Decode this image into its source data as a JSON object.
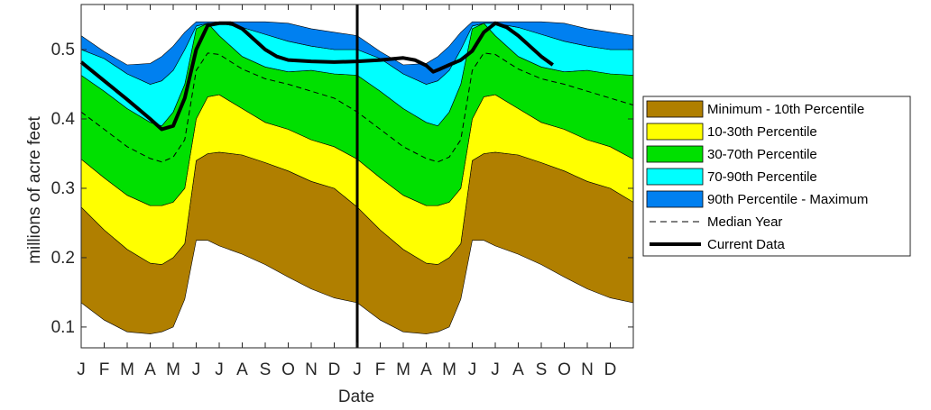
{
  "chart_data": {
    "type": "area",
    "xlabel": "Date",
    "ylabel": "millions of acre feet",
    "ylim": [
      0.07,
      0.565
    ],
    "yticks": [
      0.1,
      0.2,
      0.3,
      0.4,
      0.5
    ],
    "ytick_labels": [
      "0.1",
      "0.2",
      "0.3",
      "0.4",
      "0.5"
    ],
    "xlim": [
      0,
      24
    ],
    "xtick_labels": [
      "J",
      "F",
      "M",
      "A",
      "M",
      "J",
      "J",
      "A",
      "S",
      "O",
      "N",
      "D",
      "J",
      "F",
      "M",
      "A",
      "M",
      "J",
      "J",
      "A",
      "S",
      "O",
      "N",
      "D"
    ],
    "vertical_line_x": 12,
    "grid": false,
    "legend_position": "right",
    "x": [
      0,
      1,
      2,
      3,
      3.5,
      4,
      4.5,
      5,
      5.5,
      6,
      7,
      8,
      9,
      10,
      11,
      12,
      13,
      14,
      15,
      15.5,
      16,
      16.5,
      17,
      17.5,
      18,
      19,
      20,
      21,
      22,
      23,
      24
    ],
    "boundaries": [
      [
        0.135,
        0.11,
        0.093,
        0.09,
        0.093,
        0.1,
        0.14,
        0.225,
        0.225,
        0.217,
        0.205,
        0.19,
        0.172,
        0.155,
        0.142,
        0.135,
        0.11,
        0.093,
        0.09,
        0.093,
        0.1,
        0.14,
        0.225,
        0.225,
        0.217,
        0.205,
        0.19,
        0.172,
        0.155,
        0.142,
        0.135
      ],
      [
        0.273,
        0.24,
        0.212,
        0.192,
        0.19,
        0.2,
        0.22,
        0.34,
        0.35,
        0.352,
        0.348,
        0.337,
        0.325,
        0.31,
        0.3,
        0.273,
        0.24,
        0.212,
        0.192,
        0.19,
        0.2,
        0.22,
        0.34,
        0.35,
        0.352,
        0.348,
        0.337,
        0.325,
        0.31,
        0.3,
        0.28
      ],
      [
        0.342,
        0.315,
        0.29,
        0.275,
        0.275,
        0.28,
        0.3,
        0.4,
        0.432,
        0.435,
        0.415,
        0.395,
        0.385,
        0.37,
        0.36,
        0.342,
        0.315,
        0.29,
        0.275,
        0.275,
        0.28,
        0.3,
        0.4,
        0.432,
        0.435,
        0.415,
        0.395,
        0.385,
        0.37,
        0.36,
        0.342
      ],
      [
        0.463,
        0.44,
        0.415,
        0.395,
        0.39,
        0.41,
        0.45,
        0.53,
        0.538,
        0.52,
        0.49,
        0.475,
        0.468,
        0.47,
        0.465,
        0.463,
        0.44,
        0.415,
        0.395,
        0.39,
        0.41,
        0.45,
        0.53,
        0.538,
        0.52,
        0.49,
        0.475,
        0.468,
        0.47,
        0.465,
        0.463
      ],
      [
        0.5,
        0.487,
        0.465,
        0.45,
        0.455,
        0.47,
        0.5,
        0.534,
        0.538,
        0.538,
        0.532,
        0.522,
        0.512,
        0.505,
        0.5,
        0.5,
        0.487,
        0.465,
        0.45,
        0.455,
        0.47,
        0.5,
        0.534,
        0.538,
        0.538,
        0.532,
        0.522,
        0.512,
        0.505,
        0.5,
        0.5
      ],
      [
        0.52,
        0.497,
        0.478,
        0.48,
        0.49,
        0.505,
        0.525,
        0.54,
        0.54,
        0.54,
        0.54,
        0.54,
        0.538,
        0.53,
        0.525,
        0.52,
        0.497,
        0.478,
        0.48,
        0.49,
        0.505,
        0.525,
        0.54,
        0.54,
        0.54,
        0.54,
        0.54,
        0.538,
        0.53,
        0.525,
        0.52
      ]
    ],
    "series": [
      {
        "name": "Minimum - 10th Percentile",
        "color": "#b07f00"
      },
      {
        "name": "10-30th Percentile",
        "color": "#ffff00"
      },
      {
        "name": "30-70th Percentile",
        "color": "#00e000"
      },
      {
        "name": "70-90th Percentile",
        "color": "#00ffff"
      },
      {
        "name": "90th Percentile - Maximum",
        "color": "#0080f0"
      }
    ],
    "median": {
      "name": "Median Year",
      "values": [
        0.41,
        0.385,
        0.36,
        0.343,
        0.338,
        0.345,
        0.37,
        0.47,
        0.495,
        0.493,
        0.472,
        0.458,
        0.45,
        0.44,
        0.43,
        0.41,
        0.385,
        0.36,
        0.343,
        0.338,
        0.345,
        0.37,
        0.47,
        0.495,
        0.493,
        0.472,
        0.458,
        0.45,
        0.44,
        0.43,
        0.42
      ]
    },
    "current": {
      "name": "Current Data",
      "x": [
        0,
        1,
        2,
        3,
        3.5,
        4,
        4.5,
        5,
        5.5,
        6,
        6.5,
        7,
        7.5,
        8,
        8.5,
        9,
        10,
        11,
        12,
        13,
        14,
        14.5,
        15,
        15.3,
        15.6,
        16,
        16.5,
        17,
        17.5,
        18,
        18.5,
        19,
        19.5,
        20,
        20.5
      ],
      "values": [
        0.482,
        0.455,
        0.428,
        0.4,
        0.385,
        0.39,
        0.43,
        0.5,
        0.535,
        0.538,
        0.538,
        0.53,
        0.515,
        0.5,
        0.49,
        0.485,
        0.483,
        0.482,
        0.483,
        0.485,
        0.488,
        0.485,
        0.477,
        0.468,
        0.472,
        0.478,
        0.485,
        0.498,
        0.525,
        0.538,
        0.532,
        0.52,
        0.505,
        0.49,
        0.478
      ]
    }
  }
}
